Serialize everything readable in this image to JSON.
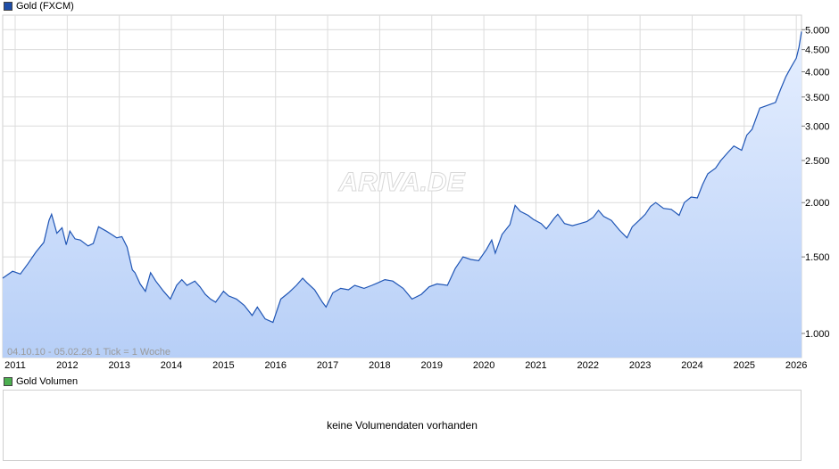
{
  "legend": {
    "main_label": "Gold (FXCM)",
    "main_color": "#1f4ea8",
    "volume_label": "Gold Volumen",
    "volume_color": "#4caf50"
  },
  "watermark": "ARIVA.DE",
  "range_note": "04.10.10 - 05.02.26   1 Tick = 1 Woche",
  "volume_panel": {
    "message": "keine Volumendaten vorhanden"
  },
  "colors": {
    "line": "#1f55b5",
    "fill_top": "#e6efff",
    "fill_bottom": "#b7cff7",
    "grid": "#dcdcdc"
  },
  "chart_data": {
    "type": "area",
    "title": "Gold (FXCM)",
    "x_range": [
      2010.76,
      2026.1
    ],
    "y_scale": "log",
    "y_range": [
      880,
      5400
    ],
    "y_ticks": [
      1000,
      1500,
      2000,
      2500,
      3000,
      3500,
      4000,
      4500,
      5000
    ],
    "y_tick_labels": [
      "1.000",
      "1.500",
      "2.000",
      "2.500",
      "3.000",
      "3.500",
      "4.000",
      "4.500",
      "5.000"
    ],
    "x_ticks": [
      2011,
      2012,
      2013,
      2014,
      2015,
      2016,
      2017,
      2018,
      2019,
      2020,
      2021,
      2022,
      2023,
      2024,
      2025,
      2026
    ],
    "x_tick_labels": [
      "2011",
      "2012",
      "2013",
      "2014",
      "2015",
      "2016",
      "2017",
      "2018",
      "2019",
      "2020",
      "2021",
      "2022",
      "2023",
      "2024",
      "2025",
      "2026"
    ],
    "grid": true,
    "series": [
      {
        "x": [
          2010.76,
          2010.95,
          2011.1,
          2011.25,
          2011.4,
          2011.55,
          2011.65,
          2011.7,
          2011.8,
          2011.9,
          2011.98,
          2012.05,
          2012.15,
          2012.25,
          2012.4,
          2012.5,
          2012.6,
          2012.75,
          2012.85,
          2012.95,
          2013.05,
          2013.15,
          2013.25,
          2013.3,
          2013.4,
          2013.5,
          2013.6,
          2013.7,
          2013.85,
          2013.98,
          2014.1,
          2014.2,
          2014.3,
          2014.45,
          2014.55,
          2014.65,
          2014.75,
          2014.85,
          2015.0,
          2015.1,
          2015.25,
          2015.4,
          2015.55,
          2015.65,
          2015.8,
          2015.95,
          2016.1,
          2016.25,
          2016.4,
          2016.52,
          2016.6,
          2016.75,
          2016.9,
          2016.97,
          2017.1,
          2017.25,
          2017.4,
          2017.52,
          2017.7,
          2017.85,
          2017.98,
          2018.1,
          2018.25,
          2018.45,
          2018.62,
          2018.8,
          2018.95,
          2019.1,
          2019.3,
          2019.45,
          2019.6,
          2019.75,
          2019.9,
          2020.05,
          2020.15,
          2020.22,
          2020.35,
          2020.5,
          2020.6,
          2020.7,
          2020.85,
          2020.95,
          2021.1,
          2021.2,
          2021.35,
          2021.42,
          2021.55,
          2021.7,
          2021.85,
          2021.98,
          2022.1,
          2022.2,
          2022.3,
          2022.45,
          2022.6,
          2022.75,
          2022.85,
          2022.98,
          2023.1,
          2023.2,
          2023.3,
          2023.45,
          2023.6,
          2023.75,
          2023.85,
          2023.98,
          2024.1,
          2024.2,
          2024.3,
          2024.45,
          2024.55,
          2024.7,
          2024.8,
          2024.95,
          2025.05,
          2025.15,
          2025.3,
          2025.45,
          2025.6,
          2025.7,
          2025.8,
          2025.9,
          2026.0,
          2026.05,
          2026.1
        ],
        "y": [
          1340,
          1390,
          1370,
          1450,
          1540,
          1620,
          1820,
          1880,
          1700,
          1750,
          1600,
          1720,
          1650,
          1640,
          1590,
          1610,
          1760,
          1720,
          1690,
          1660,
          1670,
          1580,
          1400,
          1380,
          1300,
          1250,
          1380,
          1320,
          1250,
          1200,
          1290,
          1330,
          1290,
          1320,
          1280,
          1230,
          1200,
          1180,
          1250,
          1220,
          1200,
          1160,
          1100,
          1150,
          1080,
          1060,
          1200,
          1240,
          1290,
          1340,
          1310,
          1260,
          1180,
          1150,
          1240,
          1270,
          1260,
          1290,
          1270,
          1290,
          1310,
          1330,
          1320,
          1270,
          1200,
          1230,
          1280,
          1300,
          1290,
          1410,
          1500,
          1480,
          1470,
          1560,
          1640,
          1530,
          1690,
          1780,
          1970,
          1910,
          1870,
          1830,
          1790,
          1740,
          1840,
          1880,
          1790,
          1770,
          1790,
          1810,
          1850,
          1920,
          1860,
          1820,
          1730,
          1660,
          1760,
          1820,
          1880,
          1960,
          2000,
          1940,
          1930,
          1870,
          2000,
          2060,
          2050,
          2200,
          2330,
          2400,
          2500,
          2620,
          2700,
          2640,
          2860,
          2950,
          3300,
          3350,
          3400,
          3650,
          3900,
          4100,
          4300,
          4550,
          4950
        ]
      }
    ]
  }
}
